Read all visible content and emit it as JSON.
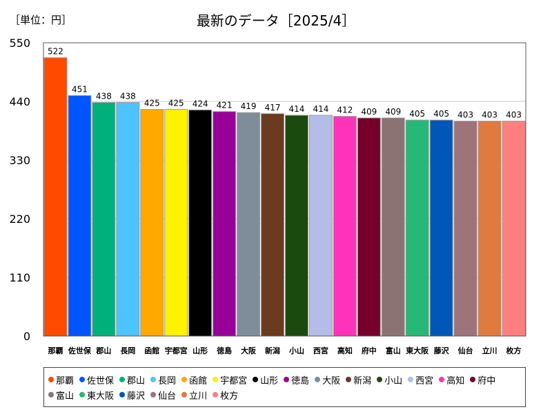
{
  "header": {
    "unit_label": "［単位：円］",
    "title": "最新のデータ［2025/4］"
  },
  "chart_data": {
    "type": "bar",
    "title": "最新のデータ［2025/4］",
    "xlabel": "",
    "ylabel": "",
    "unit": "円",
    "ylim": [
      0,
      550
    ],
    "yticks": [
      0,
      110,
      220,
      330,
      440,
      550
    ],
    "grid": true,
    "legend_position": "bottom",
    "categories": [
      "那覇",
      "佐世保",
      "郡山",
      "長岡",
      "函館",
      "宇都宮",
      "山形",
      "徳島",
      "大阪",
      "新潟",
      "小山",
      "西宮",
      "高知",
      "府中",
      "富山",
      "東大阪",
      "藤沢",
      "仙台",
      "立川",
      "枚方"
    ],
    "values": [
      522,
      451,
      438,
      438,
      425,
      425,
      424,
      421,
      419,
      417,
      414,
      414,
      412,
      409,
      409,
      405,
      405,
      403,
      403,
      403
    ],
    "colors": [
      "#ff4a00",
      "#0055ff",
      "#00b07a",
      "#4dc3ff",
      "#ffa800",
      "#fff200",
      "#000000",
      "#990099",
      "#7f8c99",
      "#6b3a1f",
      "#1a4a0d",
      "#b3bde8",
      "#ff33bb",
      "#75002a",
      "#8c7373",
      "#26b877",
      "#0057b8",
      "#9e737a",
      "#e07a3d",
      "#ff7f7f"
    ]
  }
}
